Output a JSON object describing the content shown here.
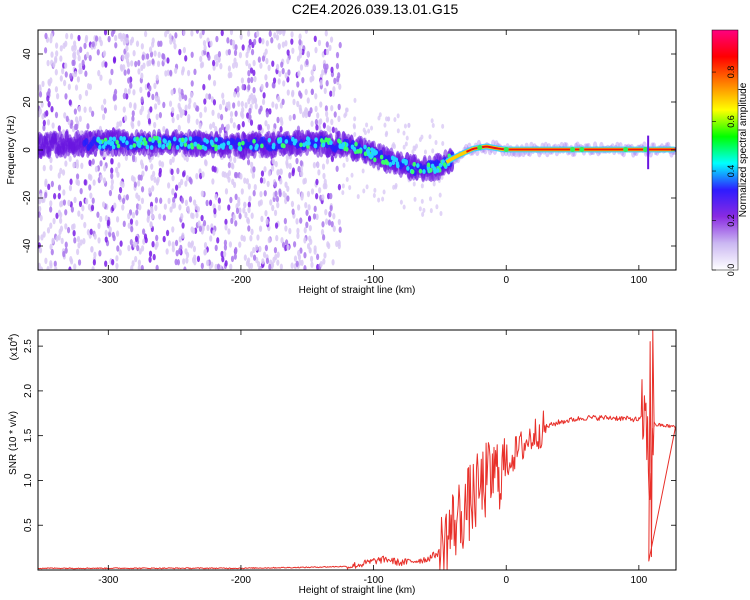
{
  "title": "C2E4.2026.039.13.01.G15",
  "chart_data": [
    {
      "type": "heatmap",
      "xlabel": "Height of straight line (km)",
      "ylabel": "Frequency (Hz)",
      "xlim": [
        -353,
        128
      ],
      "ylim": [
        -50,
        50
      ],
      "xticks": [
        -300,
        -200,
        -100,
        0,
        100
      ],
      "yticks": [
        -40,
        -20,
        0,
        20,
        40
      ],
      "colorbar": {
        "label": "Normalized spectral amplitude",
        "ticks": [
          0.0,
          0.2,
          0.4,
          0.6,
          0.8
        ],
        "range": [
          0,
          0.97
        ],
        "colors": [
          "#ffffff",
          "#cbb8f2",
          "#8a2be2",
          "#2e1bff",
          "#00ffff",
          "#00ff00",
          "#ffff00",
          "#ff8000",
          "#ff0000",
          "#ff0080"
        ]
      },
      "ridge": {
        "x": [
          -353,
          -300,
          -250,
          -200,
          -150,
          -120,
          -100,
          -80,
          -65,
          -50,
          -42,
          -35,
          -25,
          -15,
          -5,
          0,
          50,
          100,
          110,
          128
        ],
        "y": [
          2,
          3,
          3,
          2,
          3,
          2,
          -2,
          -6,
          -8,
          -7,
          -4,
          -2,
          0.5,
          1.5,
          0.5,
          0.2,
          0.2,
          0.2,
          0.2,
          0.2
        ]
      }
    },
    {
      "type": "line",
      "xlabel": "Height of straight line (km)",
      "ylabel": "SNR (10 * v/v)",
      "y_exponent_label": "(x10",
      "y_exponent": "4",
      "xlim": [
        -353,
        128
      ],
      "ylim": [
        0,
        2.68
      ],
      "xticks": [
        -300,
        -200,
        -100,
        0,
        100
      ],
      "yticks": [
        0.5,
        1.0,
        1.5,
        2.0,
        2.5
      ],
      "series": [
        {
          "color": "#e8302a",
          "x": [
            -353,
            -300,
            -250,
            -200,
            -150,
            -120,
            -110,
            -100,
            -90,
            -80,
            -70,
            -60,
            -50,
            -45,
            -40,
            -35,
            -30,
            -25,
            -20,
            -15,
            -10,
            -5,
            0,
            10,
            20,
            30,
            40,
            50,
            60,
            70,
            80,
            90,
            100,
            103,
            106,
            108,
            110,
            112,
            115,
            120,
            128
          ],
          "y": [
            0.02,
            0.02,
            0.02,
            0.02,
            0.03,
            0.04,
            0.06,
            0.1,
            0.12,
            0.08,
            0.1,
            0.12,
            0.2,
            0.35,
            0.5,
            0.6,
            0.7,
            0.8,
            0.9,
            1.0,
            1.05,
            1.1,
            1.2,
            1.35,
            1.5,
            1.6,
            1.65,
            1.68,
            1.7,
            1.7,
            1.7,
            1.69,
            1.68,
            1.7,
            1.6,
            0.8,
            1.5,
            1.62,
            1.62,
            1.61,
            1.6
          ]
        }
      ]
    }
  ]
}
